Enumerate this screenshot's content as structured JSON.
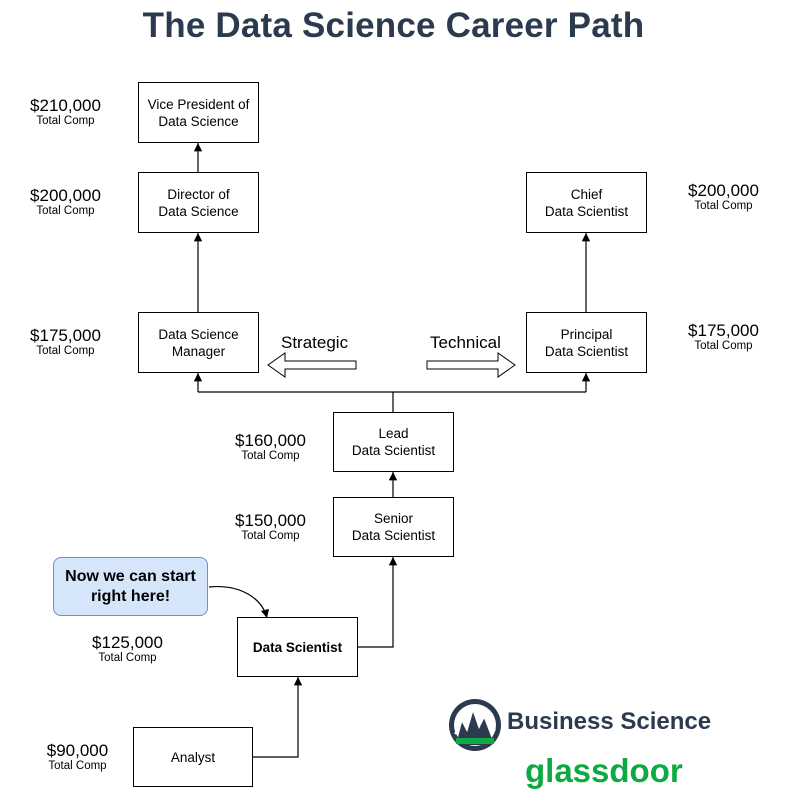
{
  "title": "The Data Science Career Path",
  "comp_label": "Total Comp",
  "roles": {
    "vp": {
      "line1": "Vice President of",
      "line2": "Data Science",
      "salary": "$210,000"
    },
    "director": {
      "line1": "Director of",
      "line2": "Data Science",
      "salary": "$200,000"
    },
    "manager": {
      "line1": "Data Science",
      "line2": "Manager",
      "salary": "$175,000"
    },
    "chief": {
      "line1": "Chief",
      "line2": "Data Scientist",
      "salary": "$200,000"
    },
    "principal": {
      "line1": "Principal",
      "line2": "Data Scientist",
      "salary": "$175,000"
    },
    "lead": {
      "line1": "Lead",
      "line2": "Data Scientist",
      "salary": "$160,000"
    },
    "senior": {
      "line1": "Senior",
      "line2": "Data Scientist",
      "salary": "$150,000"
    },
    "data_scientist": {
      "line1": "Data Scientist",
      "salary": "$125,000"
    },
    "analyst": {
      "line1": "Analyst",
      "salary": "$90,000"
    }
  },
  "directions": {
    "strategic": "Strategic",
    "technical": "Technical"
  },
  "callout": {
    "line1": "Now we can start",
    "line2": "right here!"
  },
  "brands": {
    "business_science": "Business Science",
    "glassdoor": "glassdoor"
  },
  "colors": {
    "title": "#2b3a4e",
    "callout_fill": "#d5e6fb",
    "callout_border": "#6b8ed6",
    "glassdoor": "#0caa41"
  }
}
